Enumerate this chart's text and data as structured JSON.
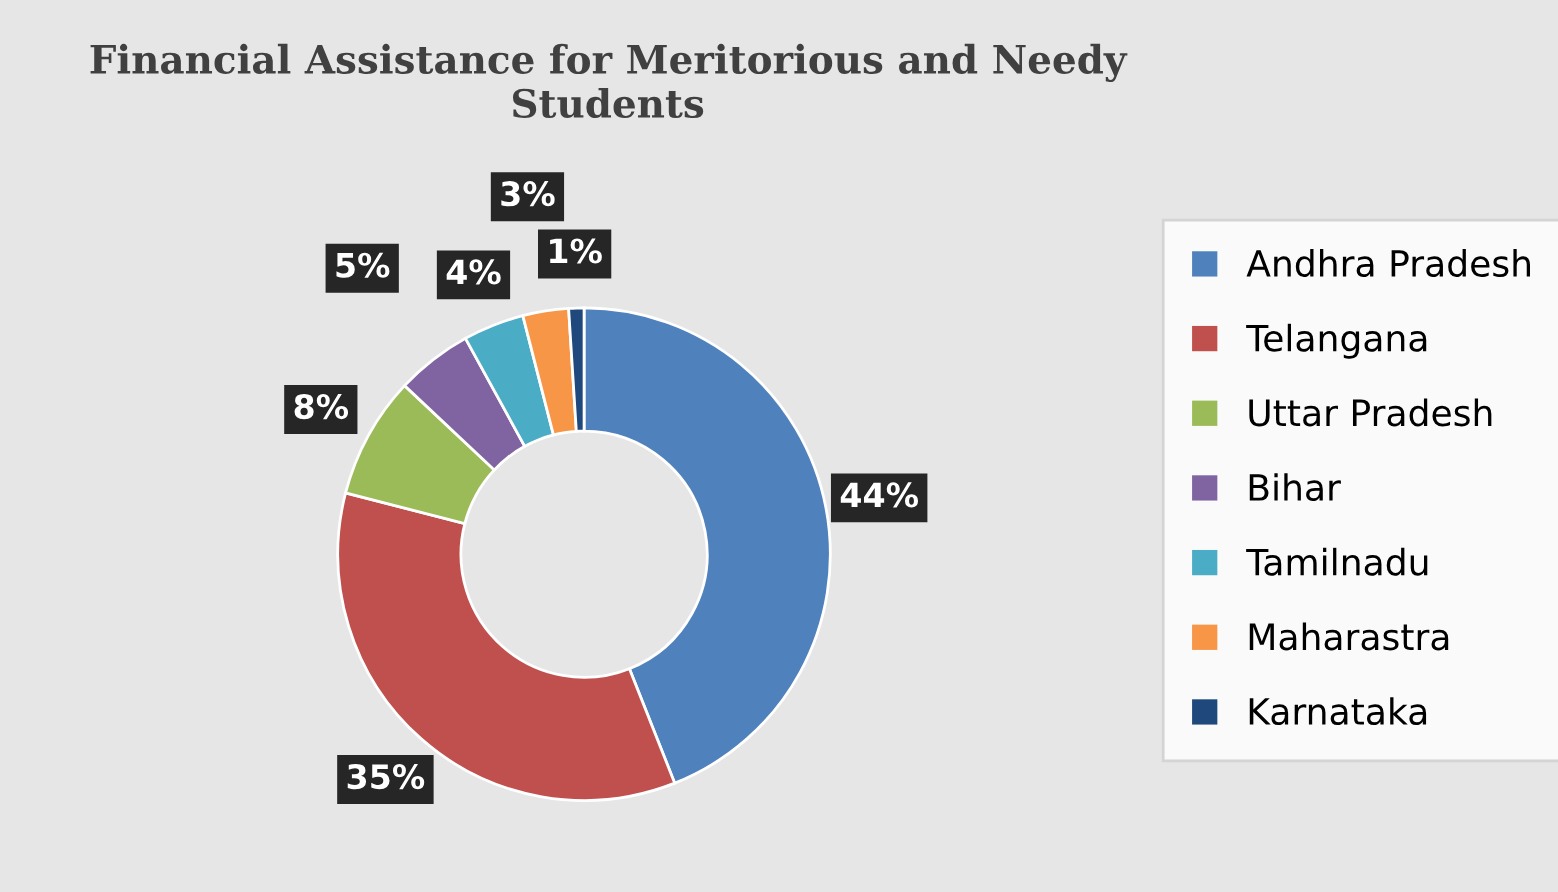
{
  "chart_data": {
    "type": "donut",
    "title": "Financial Assistance for Meritorious and Needy Students",
    "categories": [
      "Andhra Pradesh",
      "Telangana",
      "Uttar Pradesh",
      "Bihar",
      "Tamilnadu",
      "Maharastra",
      "Karnataka"
    ],
    "values": [
      44,
      35,
      8,
      5,
      4,
      3,
      1
    ],
    "value_labels": [
      "44%",
      "35%",
      "8%",
      "5%",
      "4%",
      "3%",
      "1%"
    ],
    "colors": [
      "#4f81bd",
      "#c0504d",
      "#9bbb59",
      "#8064a2",
      "#4bacc6",
      "#f79646",
      "#1f497d"
    ],
    "legend": "right"
  }
}
